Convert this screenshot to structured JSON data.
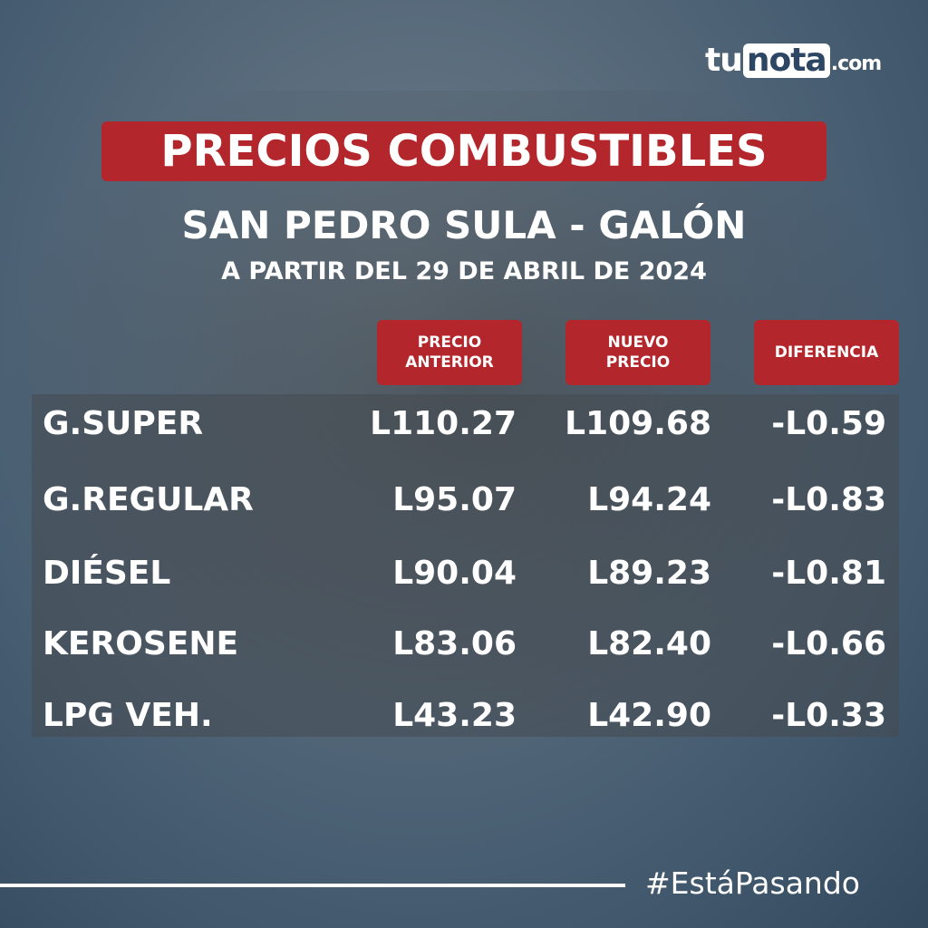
{
  "logo": {
    "part1": "tu",
    "part2": "nota",
    "part3": ".com"
  },
  "header": {
    "title": "PRECIOS COMBUSTIBLES",
    "subtitle": "SAN PEDRO SULA - GALÓN",
    "date_line": "A PARTIR DEL 29 DE ABRIL DE 2024"
  },
  "table": {
    "headers": [
      "PRECIO ANTERIOR",
      "NUEVO PRECIO",
      "DIFERENCIA"
    ],
    "rows": [
      [
        "G.SUPER",
        "L110.27",
        "L109.68",
        "-L0.59"
      ],
      [
        "G.REGULAR",
        "L95.07",
        "L94.24",
        "-L0.83"
      ],
      [
        "DIÉSEL",
        "L90.04",
        "L89.23",
        "-L0.81"
      ],
      [
        "KEROSENE",
        "L83.06",
        "L82.40",
        "-L0.66"
      ],
      [
        "LPG VEH.",
        "L43.23",
        "L42.90",
        "-L0.33"
      ]
    ]
  },
  "footer": {
    "hashtag": "#EstáPasando"
  }
}
